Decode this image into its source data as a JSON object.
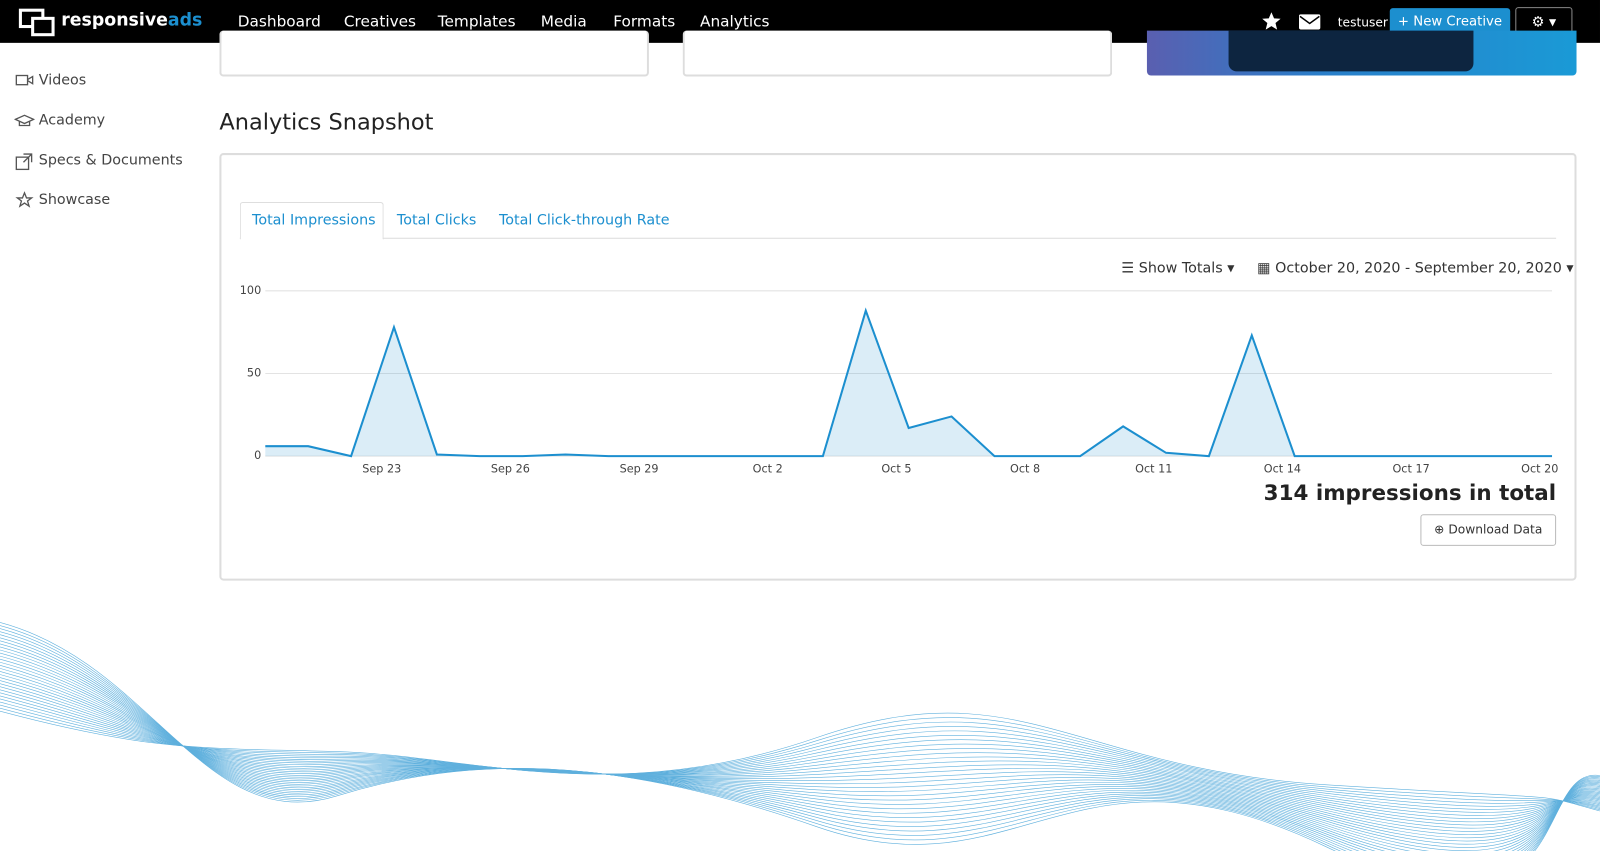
{
  "nav": {
    "brand": {
      "first": "responsive",
      "second": "ads"
    },
    "items": [
      "Dashboard",
      "Creatives",
      "Templates",
      "Media",
      "Formats",
      "Analytics"
    ],
    "user": "testuser",
    "new_button": "New Creative"
  },
  "sidebar": [
    "Videos",
    "Academy",
    "Specs & Documents",
    "Showcase"
  ],
  "section_title": "Analytics Snapshot",
  "tabs": [
    "Total Impressions",
    "Total Clicks",
    "Total Click-through Rate"
  ],
  "controls": {
    "totals": "Show Totals",
    "date_range": "October 20, 2020 - September 20, 2020"
  },
  "chart_data": {
    "type": "area",
    "categories": [
      null,
      null,
      null,
      "Sep 23",
      null,
      null,
      "Sep 26",
      null,
      null,
      "Sep 29",
      null,
      null,
      "Oct 2",
      null,
      null,
      "Oct 5",
      null,
      null,
      "Oct 8",
      null,
      null,
      "Oct 11",
      null,
      null,
      "Oct 14",
      null,
      null,
      "Oct 17",
      null,
      null,
      "Oct 20"
    ],
    "values": [
      6,
      6,
      0,
      78,
      1,
      0,
      0,
      1,
      0,
      0,
      0,
      0,
      0,
      0,
      88,
      17,
      24,
      0,
      0,
      0,
      18,
      2,
      0,
      73,
      0,
      0,
      0,
      0,
      0,
      0,
      0
    ],
    "color": "#1c8fcf",
    "ylim": [
      0,
      100
    ],
    "yticks": [
      0,
      50,
      100
    ],
    "grid": true
  },
  "total_text": "314 impressions in total",
  "download": "Download Data"
}
